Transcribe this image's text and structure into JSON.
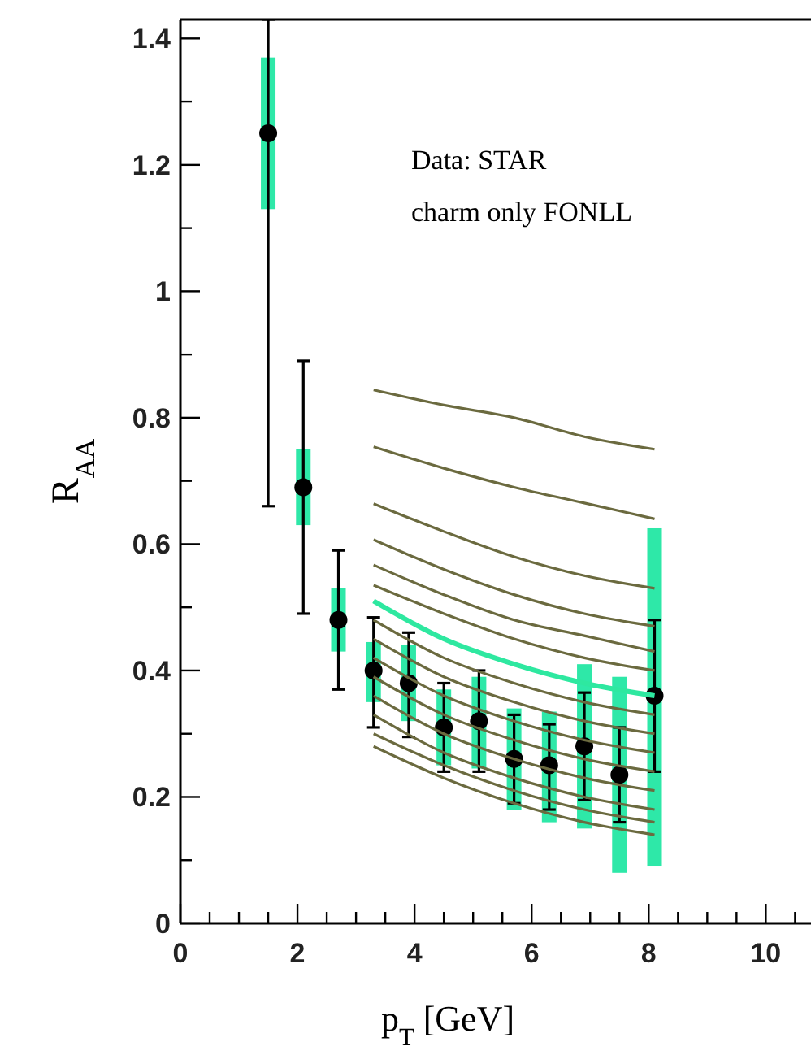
{
  "chart_data": {
    "type": "scatter",
    "xlabel": "p$_{T}$ [GeV]",
    "ylabel": "R$_{AA}$",
    "annotations": [
      "Data: STAR",
      "charm only FONLL"
    ],
    "xlim": [
      0,
      10.8
    ],
    "ylim": [
      0,
      1.43
    ],
    "xticks": [
      0,
      {
        "value": 0.5,
        "label": null
      },
      {
        "value": 1,
        "label": null
      },
      {
        "value": 1.5,
        "label": null
      },
      2,
      {
        "value": 2.5,
        "label": null
      },
      {
        "value": 3,
        "label": null
      },
      {
        "value": 3.5,
        "label": null
      },
      4,
      {
        "value": 4.5,
        "label": null
      },
      {
        "value": 5,
        "label": null
      },
      {
        "value": 5.5,
        "label": null
      },
      6,
      {
        "value": 6.5,
        "label": null
      },
      {
        "value": 7,
        "label": null
      },
      {
        "value": 7.5,
        "label": null
      },
      8,
      {
        "value": 8.5,
        "label": null
      },
      {
        "value": 9,
        "label": null
      },
      {
        "value": 9.5,
        "label": null
      },
      10,
      {
        "value": 10.5,
        "label": null
      }
    ],
    "yticks": [
      0,
      {
        "value": 0.1,
        "label": null
      },
      0.2,
      {
        "value": 0.3,
        "label": null
      },
      0.4,
      {
        "value": 0.5,
        "label": null
      },
      0.6,
      {
        "value": 0.7,
        "label": null
      },
      0.8,
      {
        "value": 0.9,
        "label": null
      },
      1,
      {
        "value": 1.1,
        "label": null
      },
      1.2,
      {
        "value": 1.3,
        "label": null
      },
      1.4
    ],
    "series": [
      {
        "type": "line",
        "color": "#6b6a3f",
        "x": [
          3.3,
          4.5,
          5.7,
          6.9,
          8.1
        ],
        "values": [
          0.844,
          0.82,
          0.8,
          0.77,
          0.75
        ]
      },
      {
        "type": "line",
        "color": "#6b6a3f",
        "x": [
          3.3,
          4.5,
          5.7,
          6.9,
          8.1
        ],
        "values": [
          0.754,
          0.72,
          0.69,
          0.665,
          0.64
        ]
      },
      {
        "type": "line",
        "color": "#6b6a3f",
        "x": [
          3.3,
          4.5,
          5.7,
          6.9,
          8.1
        ],
        "values": [
          0.664,
          0.62,
          0.58,
          0.55,
          0.53
        ]
      },
      {
        "type": "line",
        "color": "#6b6a3f",
        "x": [
          3.3,
          4.5,
          5.7,
          6.9,
          8.1
        ],
        "values": [
          0.607,
          0.56,
          0.52,
          0.49,
          0.47
        ]
      },
      {
        "type": "line",
        "color": "#6b6a3f",
        "x": [
          3.3,
          4.5,
          5.7,
          6.9,
          8.1
        ],
        "values": [
          0.567,
          0.52,
          0.48,
          0.455,
          0.43
        ]
      },
      {
        "type": "line",
        "color": "#6b6a3f",
        "x": [
          3.3,
          4.5,
          5.7,
          6.9,
          8.1
        ],
        "values": [
          0.535,
          0.49,
          0.45,
          0.42,
          0.4
        ]
      },
      {
        "type": "line",
        "color": "#6b6a3f",
        "x": [
          3.3,
          4.5,
          5.7,
          6.9,
          8.1
        ],
        "values": [
          0.48,
          0.42,
          0.38,
          0.35,
          0.33
        ]
      },
      {
        "type": "line",
        "color": "#6b6a3f",
        "x": [
          3.3,
          4.5,
          5.7,
          6.9,
          8.1
        ],
        "values": [
          0.45,
          0.39,
          0.35,
          0.32,
          0.3
        ]
      },
      {
        "type": "line",
        "color": "#6b6a3f",
        "x": [
          3.3,
          4.5,
          5.7,
          6.9,
          8.1
        ],
        "values": [
          0.42,
          0.36,
          0.32,
          0.29,
          0.27
        ]
      },
      {
        "type": "line",
        "color": "#6b6a3f",
        "x": [
          3.3,
          4.5,
          5.7,
          6.9,
          8.1
        ],
        "values": [
          0.39,
          0.33,
          0.29,
          0.26,
          0.24
        ]
      },
      {
        "type": "line",
        "color": "#6b6a3f",
        "x": [
          3.3,
          4.5,
          5.7,
          6.9,
          8.1
        ],
        "values": [
          0.36,
          0.3,
          0.26,
          0.23,
          0.21
        ]
      },
      {
        "type": "line",
        "color": "#6b6a3f",
        "x": [
          3.3,
          4.5,
          5.7,
          6.9,
          8.1
        ],
        "values": [
          0.33,
          0.27,
          0.23,
          0.2,
          0.18
        ]
      },
      {
        "type": "line",
        "color": "#6b6a3f",
        "x": [
          3.3,
          4.5,
          5.7,
          6.9,
          8.1
        ],
        "values": [
          0.3,
          0.25,
          0.21,
          0.18,
          0.16
        ]
      },
      {
        "type": "line",
        "color": "#6b6a3f",
        "x": [
          3.3,
          4.5,
          5.7,
          6.9,
          8.1
        ],
        "values": [
          0.28,
          0.23,
          0.19,
          0.16,
          0.14
        ]
      },
      {
        "type": "line",
        "color": "#2ee8a0",
        "x": [
          3.3,
          4.5,
          5.7,
          6.9,
          8.1
        ],
        "values": [
          0.51,
          0.45,
          0.41,
          0.38,
          0.36
        ]
      },
      {
        "type": "bar",
        "color": "#2ee8a8",
        "x": [
          1.5,
          2.1,
          2.7,
          3.3,
          3.9,
          4.5,
          5.1,
          5.7,
          6.3,
          6.9,
          7.5,
          8.1
        ],
        "base": [
          1.13,
          0.63,
          0.43,
          0.35,
          0.32,
          0.25,
          0.245,
          0.18,
          0.16,
          0.15,
          0.08,
          0.09
        ],
        "values": [
          0.24,
          0.12,
          0.1,
          0.095,
          0.12,
          0.12,
          0.145,
          0.16,
          0.175,
          0.26,
          0.31,
          0.535
        ]
      },
      {
        "color": "#000000",
        "marker": "circle",
        "x": [
          1.5,
          2.1,
          2.7,
          3.3,
          3.9,
          4.5,
          5.1,
          5.7,
          6.3,
          6.9,
          7.5,
          8.1
        ],
        "values": [
          1.25,
          0.69,
          0.48,
          0.4,
          0.38,
          0.31,
          0.32,
          0.26,
          0.25,
          0.28,
          0.235,
          0.36
        ],
        "errors": [
          [
            0.66,
            1.43
          ],
          [
            0.49,
            0.89
          ],
          [
            0.37,
            0.59
          ],
          [
            0.31,
            0.484
          ],
          [
            0.295,
            0.46
          ],
          [
            0.24,
            0.38
          ],
          [
            0.24,
            0.4
          ],
          [
            0.19,
            0.33
          ],
          [
            0.18,
            0.315
          ],
          [
            0.195,
            0.365
          ],
          [
            0.16,
            0.31
          ],
          [
            0.24,
            0.48
          ]
        ]
      }
    ]
  }
}
